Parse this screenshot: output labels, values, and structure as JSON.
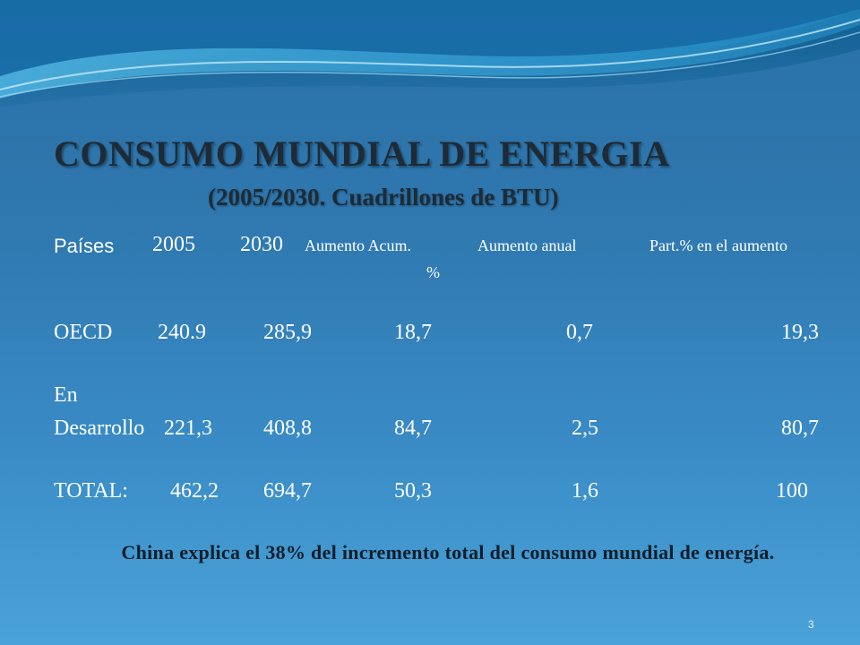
{
  "slide": {
    "title": "CONSUMO MUNDIAL DE ENERGIA",
    "subtitle": "(2005/2030. Cuadrillones de BTU)",
    "page_number": "3",
    "note": "China explica el 38% del incremento total del consumo mundial de energía."
  },
  "table": {
    "headers": {
      "country": "Países",
      "y2005": "2005",
      "y2030": "2030",
      "cumulative": "Aumento Acum.",
      "cumulative_unit": "%",
      "annual": "Aumento anual",
      "share": "Part.% en el aumento"
    },
    "rows": [
      {
        "country": "OECD",
        "country_line1": "",
        "y2005": "240.9",
        "y2030": "285,9",
        "cumulative": "18,7",
        "annual": "0,7",
        "share": "19,3"
      },
      {
        "country": "Desarrollo",
        "country_line1": "En",
        "y2005": "221,3",
        "y2030": "408,8",
        "cumulative": "84,7",
        "annual": "2,5",
        "share": "80,7"
      },
      {
        "country": "TOTAL:",
        "country_line1": "",
        "y2005": "462,2",
        "y2030": "694,7",
        "cumulative": "50,3",
        "annual": "1,6",
        "share": "100"
      }
    ]
  },
  "colors": {
    "background_top": "#2a6fa3",
    "background_bottom": "#4aa3d8",
    "title": "#1e2b36",
    "text": "#ffffff",
    "note": "#0f1e2a"
  }
}
